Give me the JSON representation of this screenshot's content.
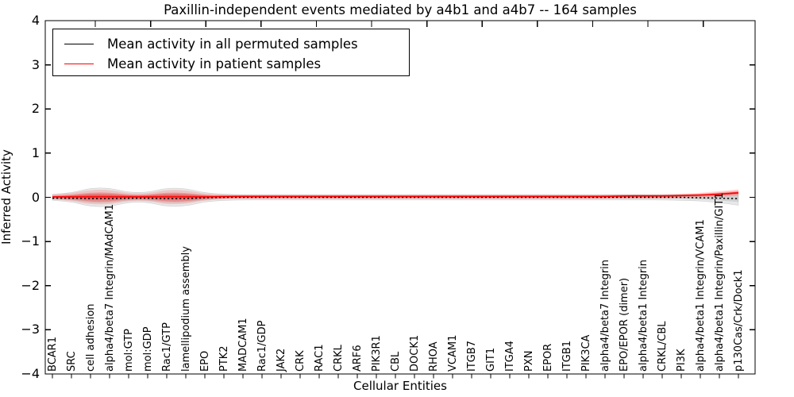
{
  "title": "Paxillin-independent events mediated by a4b1 and a4b7 -- 164 samples",
  "axes": {
    "ylabel": "Inferred Activity",
    "xlabel": "Cellular Entities",
    "yticks": [
      "4",
      "3",
      "2",
      "1",
      "0",
      "−1",
      "−2",
      "−3",
      "−4"
    ],
    "ytick_values": [
      4,
      3,
      2,
      1,
      0,
      -1,
      -2,
      -3,
      -4
    ]
  },
  "legend": {
    "items": [
      {
        "label": "Mean activity in all permuted samples",
        "color": "#000000"
      },
      {
        "label": "Mean activity in patient samples",
        "color": "#ff0000"
      }
    ]
  },
  "chart_data": {
    "type": "line",
    "title": "Paxillin-independent events mediated by a4b1 and a4b7 -- 164 samples",
    "xlabel": "Cellular Entities",
    "ylabel": "Inferred Activity",
    "ylim": [
      -4,
      4
    ],
    "grid": false,
    "legend_position": "upper left",
    "categories": [
      "BCAR1",
      "SRC",
      "cell adhesion",
      "alpha4/beta7 Integrin/MAdCAM1",
      "mol:GTP",
      "mol:GDP",
      "Rac1/GTP",
      "lamellipodium assembly",
      "EPO",
      "PTK2",
      "MADCAM1",
      "Rac1/GDP",
      "JAK2",
      "CRK",
      "RAC1",
      "CRKL",
      "ARF6",
      "PIK3R1",
      "CBL",
      "DOCK1",
      "RHOA",
      "VCAM1",
      "ITGB7",
      "GIT1",
      "ITGA4",
      "PXN",
      "EPOR",
      "ITGB1",
      "PIK3CA",
      "alpha4/beta7 Integrin",
      "EPO/EPOR (dimer)",
      "alpha4/beta1 Integrin",
      "CRKL/CBL",
      "PI3K",
      "alpha4/beta1 Integrin/VCAM1",
      "alpha4/beta1 Integrin/Paxillin/GIT1",
      "p130Cas/Crk/Dock1"
    ],
    "series": [
      {
        "name": "Mean activity in all permuted samples",
        "color": "#000000",
        "linestyle": "dotted",
        "values": [
          -0.02,
          -0.02,
          -0.03,
          -0.03,
          -0.02,
          -0.02,
          -0.03,
          -0.03,
          -0.01,
          0,
          0,
          0,
          0,
          0,
          0,
          0,
          0,
          0,
          0,
          0,
          0,
          0,
          0,
          0,
          0,
          0,
          0,
          0,
          0,
          0,
          0,
          0,
          0,
          0,
          -0.01,
          -0.02,
          -0.03
        ]
      },
      {
        "name": "Mean activity in patient samples",
        "color": "#ff0000",
        "linestyle": "solid",
        "values": [
          0.01,
          0.01,
          0.01,
          0.01,
          0.01,
          0.01,
          0.01,
          0.01,
          0.01,
          0.02,
          0.02,
          0.02,
          0.02,
          0.02,
          0.02,
          0.02,
          0.02,
          0.02,
          0.02,
          0.02,
          0.02,
          0.02,
          0.02,
          0.02,
          0.02,
          0.02,
          0.02,
          0.02,
          0.02,
          0.02,
          0.03,
          0.03,
          0.03,
          0.04,
          0.05,
          0.07,
          0.1
        ]
      }
    ],
    "bands": [
      {
        "name": "permuted samples activity range",
        "color": "#000000",
        "lo": [
          -0.07,
          -0.1,
          -0.21,
          -0.21,
          -0.11,
          -0.11,
          -0.21,
          -0.2,
          -0.1,
          -0.07,
          -0.06,
          -0.06,
          -0.06,
          -0.06,
          -0.06,
          -0.06,
          -0.06,
          -0.06,
          -0.06,
          -0.06,
          -0.06,
          -0.06,
          -0.06,
          -0.06,
          -0.06,
          -0.06,
          -0.06,
          -0.06,
          -0.06,
          -0.06,
          -0.06,
          -0.06,
          -0.06,
          -0.07,
          -0.08,
          -0.12,
          -0.18
        ],
        "hi": [
          0.07,
          0.1,
          0.21,
          0.21,
          0.11,
          0.11,
          0.21,
          0.2,
          0.1,
          0.07,
          0.06,
          0.06,
          0.06,
          0.06,
          0.06,
          0.06,
          0.06,
          0.06,
          0.06,
          0.06,
          0.06,
          0.06,
          0.06,
          0.06,
          0.06,
          0.06,
          0.06,
          0.06,
          0.06,
          0.06,
          0.06,
          0.06,
          0.06,
          0.06,
          0.06,
          0.08,
          0.12
        ]
      },
      {
        "name": "patient samples activity range",
        "color": "#ff0000",
        "lo": [
          -0.05,
          -0.08,
          -0.16,
          -0.16,
          -0.08,
          -0.08,
          -0.16,
          -0.15,
          -0.07,
          -0.04,
          -0.03,
          -0.03,
          -0.03,
          -0.03,
          -0.03,
          -0.03,
          -0.03,
          -0.03,
          -0.03,
          -0.03,
          -0.03,
          -0.03,
          -0.03,
          -0.03,
          -0.03,
          -0.03,
          -0.03,
          -0.03,
          -0.03,
          -0.03,
          -0.02,
          -0.02,
          -0.02,
          -0.01,
          0.0,
          0.01,
          0.03
        ],
        "hi": [
          0.06,
          0.09,
          0.17,
          0.17,
          0.09,
          0.09,
          0.17,
          0.16,
          0.08,
          0.06,
          0.06,
          0.06,
          0.06,
          0.06,
          0.06,
          0.06,
          0.06,
          0.06,
          0.06,
          0.06,
          0.06,
          0.06,
          0.06,
          0.06,
          0.06,
          0.06,
          0.06,
          0.06,
          0.06,
          0.06,
          0.07,
          0.07,
          0.07,
          0.08,
          0.1,
          0.14,
          0.18
        ]
      }
    ]
  }
}
